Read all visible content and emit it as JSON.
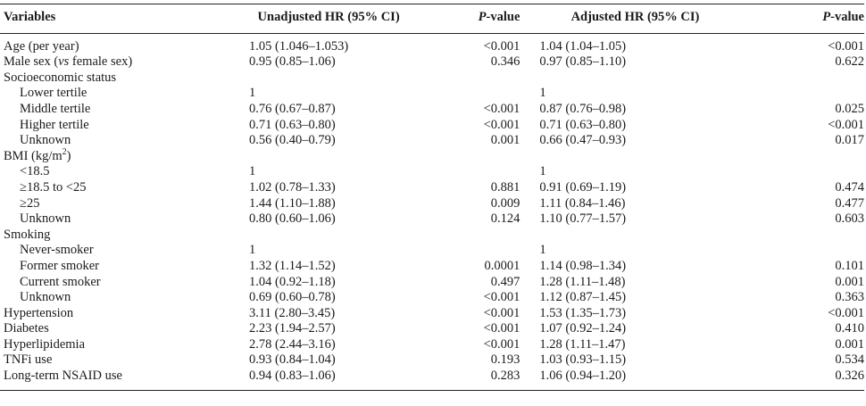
{
  "header": {
    "variables": "Variables",
    "unadjusted_hr": "Unadjusted HR (95% CI)",
    "p_value_1_italic": "P",
    "p_value_1_rest": "-value",
    "adjusted_hr": "Adjusted HR (95% CI)",
    "p_value_2_italic": "P",
    "p_value_2_rest": "-value"
  },
  "rows": [
    {
      "variable": "Age (per year)",
      "indent": false,
      "uhr": "1.05 (1.046–1.053)",
      "up": "<0.001",
      "ahr": "1.04 (1.04–1.05)",
      "ap": "<0.001"
    },
    {
      "variable_parts": [
        "Male sex (",
        "vs",
        " female sex)"
      ],
      "indent": false,
      "uhr": "0.95 (0.85–1.06)",
      "up": "0.346",
      "ahr": "0.97 (0.85–1.10)",
      "ap": "0.622"
    },
    {
      "variable": "Socioeconomic status",
      "indent": false,
      "uhr": "",
      "up": "",
      "ahr": "",
      "ap": ""
    },
    {
      "variable": "Lower tertile",
      "indent": true,
      "uhr": "1",
      "up": "",
      "ahr": "1",
      "ap": ""
    },
    {
      "variable": "Middle tertile",
      "indent": true,
      "uhr": "0.76 (0.67–0.87)",
      "up": "<0.001",
      "ahr": "0.87 (0.76–0.98)",
      "ap": "0.025"
    },
    {
      "variable": "Higher tertile",
      "indent": true,
      "uhr": "0.71 (0.63–0.80)",
      "up": "<0.001",
      "ahr": "0.71 (0.63–0.80)",
      "ap": "<0.001"
    },
    {
      "variable": "Unknown",
      "indent": true,
      "uhr": "0.56 (0.40–0.79)",
      "up": "0.001",
      "ahr": "0.66 (0.47–0.93)",
      "ap": "0.017"
    },
    {
      "variable_parts": [
        "BMI (kg/m",
        "2",
        ")"
      ],
      "indent": false,
      "uhr": "",
      "up": "",
      "ahr": "",
      "ap": ""
    },
    {
      "variable": "<18.5",
      "indent": true,
      "uhr": "1",
      "up": "",
      "ahr": "1",
      "ap": ""
    },
    {
      "variable": "≥18.5 to <25",
      "indent": true,
      "uhr": "1.02 (0.78–1.33)",
      "up": "0.881",
      "ahr": "0.91 (0.69–1.19)",
      "ap": "0.474"
    },
    {
      "variable": "≥25",
      "indent": true,
      "uhr": "1.44 (1.10–1.88)",
      "up": "0.009",
      "ahr": "1.11 (0.84–1.46)",
      "ap": "0.477"
    },
    {
      "variable": "Unknown",
      "indent": true,
      "uhr": "0.80 (0.60–1.06)",
      "up": "0.124",
      "ahr": "1.10 (0.77–1.57)",
      "ap": "0.603"
    },
    {
      "variable": "Smoking",
      "indent": false,
      "uhr": "",
      "up": "",
      "ahr": "",
      "ap": ""
    },
    {
      "variable": "Never-smoker",
      "indent": true,
      "uhr": "1",
      "up": "",
      "ahr": "1",
      "ap": ""
    },
    {
      "variable": "Former smoker",
      "indent": true,
      "uhr": "1.32 (1.14–1.52)",
      "up": "0.0001",
      "ahr": "1.14 (0.98–1.34)",
      "ap": "0.101"
    },
    {
      "variable": "Current smoker",
      "indent": true,
      "uhr": "1.04 (0.92–1.18)",
      "up": "0.497",
      "ahr": "1.28 (1.11–1.48)",
      "ap": "0.001"
    },
    {
      "variable": "Unknown",
      "indent": true,
      "uhr": "0.69 (0.60–0.78)",
      "up": "<0.001",
      "ahr": "1.12 (0.87–1.45)",
      "ap": "0.363"
    },
    {
      "variable": "Hypertension",
      "indent": false,
      "uhr": "3.11 (2.80–3.45)",
      "up": "<0.001",
      "ahr": "1.53 (1.35–1.73)",
      "ap": "<0.001"
    },
    {
      "variable": "Diabetes",
      "indent": false,
      "uhr": "2.23 (1.94–2.57)",
      "up": "<0.001",
      "ahr": "1.07 (0.92–1.24)",
      "ap": "0.410"
    },
    {
      "variable": "Hyperlipidemia",
      "indent": false,
      "uhr": "2.78 (2.44–3.16)",
      "up": "<0.001",
      "ahr": "1.28 (1.11–1.47)",
      "ap": "0.001"
    },
    {
      "variable": "TNFi use",
      "indent": false,
      "uhr": "0.93 (0.84–1.04)",
      "up": "0.193",
      "ahr": "1.03 (0.93–1.15)",
      "ap": "0.534"
    },
    {
      "variable": "Long-term NSAID use",
      "indent": false,
      "uhr": "0.94 (0.83–1.06)",
      "up": "0.283",
      "ahr": "1.06 (0.94–1.20)",
      "ap": "0.326"
    }
  ]
}
